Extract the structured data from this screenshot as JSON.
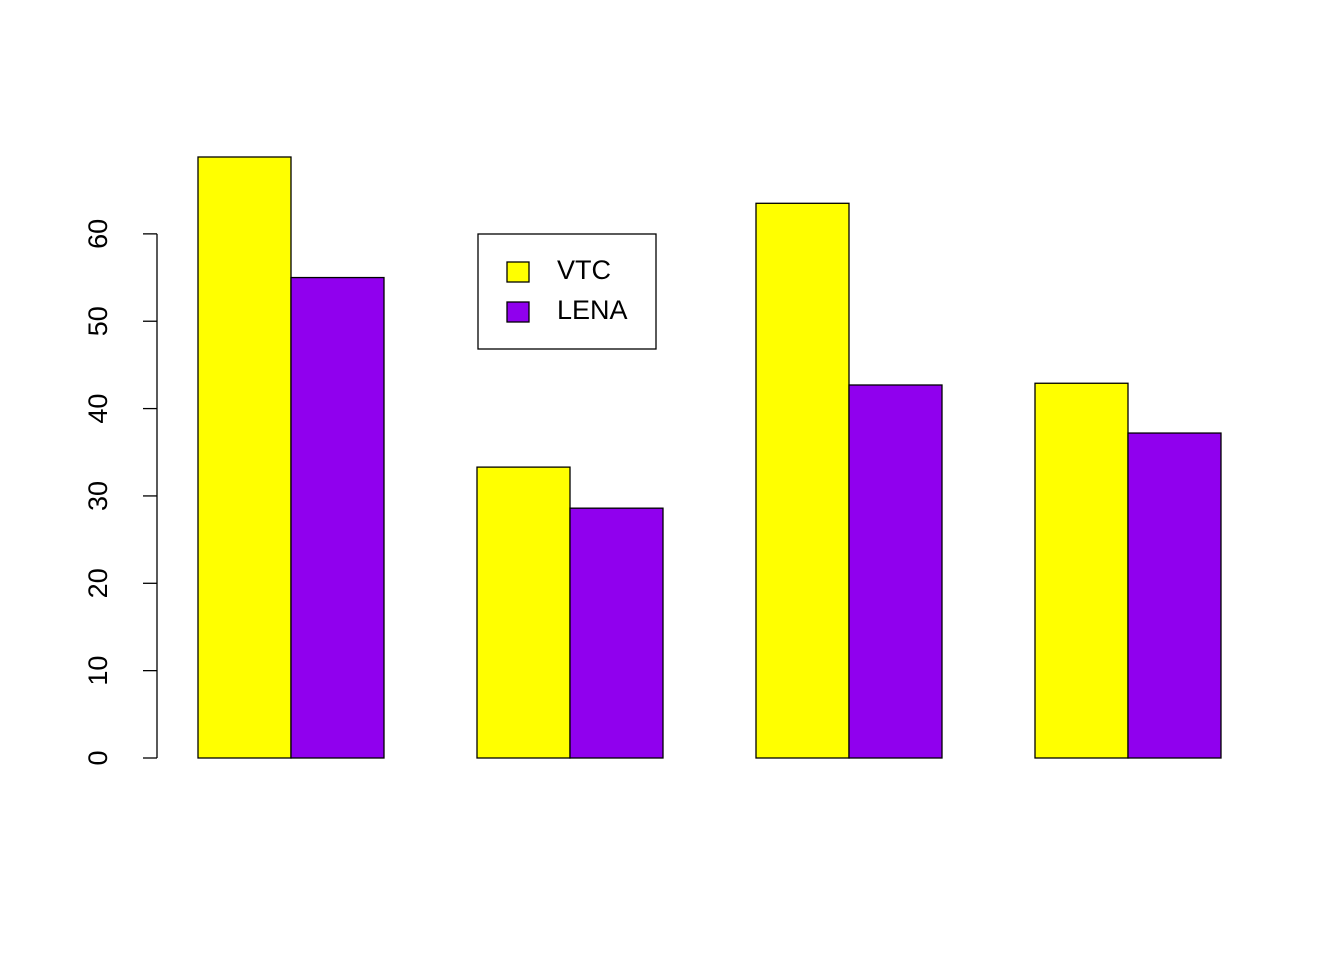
{
  "chart_data": {
    "type": "bar",
    "categories": [
      null,
      null,
      null,
      null
    ],
    "series": [
      {
        "name": "VTC",
        "color": "#ffff00",
        "values": [
          68.8,
          33.3,
          63.5,
          42.9
        ]
      },
      {
        "name": "LENA",
        "color": "#9000ee",
        "values": [
          55.0,
          28.6,
          42.7,
          37.2
        ]
      }
    ],
    "ylim": [
      0,
      68.8
    ],
    "yticks": [
      0,
      10,
      20,
      30,
      40,
      50,
      60
    ],
    "legend": "top"
  }
}
